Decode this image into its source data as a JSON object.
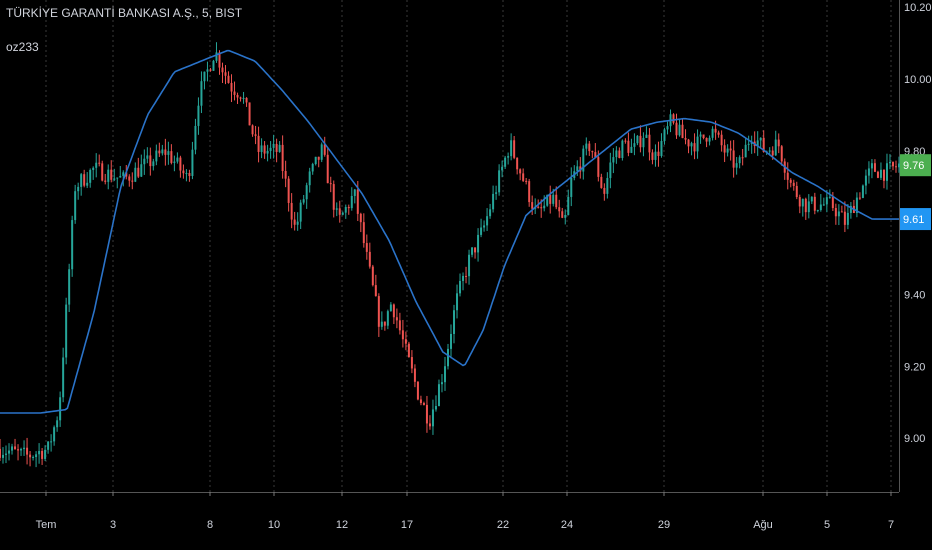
{
  "header": {
    "title": "TÜRKİYE GARANTİ BANKASI A.Ş., 5, BIST",
    "indicator": "oz233"
  },
  "colors": {
    "background": "#000000",
    "candle_up": "#26a69a",
    "candle_down": "#ef5350",
    "ma_line": "#2a73c9",
    "grid": "#3a3a3a",
    "axis_text": "#cfd3dc",
    "last_price_badge": "#4caf50",
    "ma_badge": "#2196f3"
  },
  "chart_data": {
    "type": "candlestick",
    "ylim": [
      8.85,
      10.22
    ],
    "y_ticks": [
      {
        "value": 10.2,
        "label": "10.20"
      },
      {
        "value": 10.0,
        "label": "10.00"
      },
      {
        "value": 9.8,
        "label": "9.80"
      },
      {
        "value": 9.4,
        "label": "9.40"
      },
      {
        "value": 9.2,
        "label": "9.20"
      },
      {
        "value": 9.0,
        "label": "9.00"
      }
    ],
    "x_ticks": [
      "Tem",
      "3",
      "8",
      "10",
      "12",
      "17",
      "22",
      "24",
      "29",
      "Ağu",
      "5",
      "7"
    ],
    "last_price": {
      "value": 9.76,
      "label": "9.76"
    },
    "ma_value": {
      "value": 9.61,
      "label": "9.61"
    },
    "price_path": [
      [
        0,
        8.97
      ],
      [
        1,
        8.95
      ],
      [
        1.8,
        8.97
      ],
      [
        2.2,
        9.08
      ],
      [
        2.8,
        9.7
      ],
      [
        3.5,
        9.75
      ],
      [
        4.6,
        9.72
      ],
      [
        5.4,
        9.76
      ],
      [
        6.2,
        9.8
      ],
      [
        7.0,
        9.72
      ],
      [
        7.4,
        9.95
      ],
      [
        8.0,
        10.08
      ],
      [
        8.6,
        9.98
      ],
      [
        9.0,
        9.96
      ],
      [
        9.6,
        9.8
      ],
      [
        10.4,
        9.8
      ],
      [
        11.0,
        9.58
      ],
      [
        11.5,
        9.72
      ],
      [
        12.0,
        9.8
      ],
      [
        12.6,
        9.6
      ],
      [
        13.2,
        9.68
      ],
      [
        13.8,
        9.45
      ],
      [
        14.2,
        9.3
      ],
      [
        14.6,
        9.38
      ],
      [
        15.2,
        9.22
      ],
      [
        15.6,
        9.12
      ],
      [
        16.0,
        9.05
      ],
      [
        16.5,
        9.18
      ],
      [
        17.0,
        9.38
      ],
      [
        17.5,
        9.5
      ],
      [
        18.0,
        9.58
      ],
      [
        18.5,
        9.7
      ],
      [
        19.0,
        9.82
      ],
      [
        19.5,
        9.72
      ],
      [
        20.0,
        9.62
      ],
      [
        20.6,
        9.67
      ],
      [
        21.0,
        9.58
      ],
      [
        21.3,
        9.72
      ],
      [
        22.0,
        9.82
      ],
      [
        22.5,
        9.68
      ],
      [
        22.8,
        9.78
      ],
      [
        23.3,
        9.82
      ],
      [
        23.6,
        9.8
      ],
      [
        24.0,
        9.85
      ],
      [
        24.4,
        9.78
      ],
      [
        25.0,
        9.88
      ],
      [
        25.5,
        9.83
      ],
      [
        26.0,
        9.82
      ],
      [
        26.5,
        9.86
      ],
      [
        27.0,
        9.8
      ],
      [
        27.5,
        9.75
      ],
      [
        28.0,
        9.85
      ],
      [
        28.5,
        9.8
      ],
      [
        29.0,
        9.82
      ],
      [
        29.5,
        9.7
      ],
      [
        30.0,
        9.65
      ],
      [
        30.5,
        9.65
      ],
      [
        31.0,
        9.65
      ],
      [
        31.5,
        9.6
      ],
      [
        32.0,
        9.68
      ],
      [
        32.5,
        9.75
      ],
      [
        33.0,
        9.74
      ],
      [
        33.5,
        9.76
      ]
    ],
    "ma_path": [
      [
        0,
        9.07
      ],
      [
        1.5,
        9.07
      ],
      [
        2.5,
        9.08
      ],
      [
        3.5,
        9.35
      ],
      [
        4.5,
        9.7
      ],
      [
        5.5,
        9.9
      ],
      [
        6.5,
        10.02
      ],
      [
        7.5,
        10.05
      ],
      [
        8.5,
        10.08
      ],
      [
        9.5,
        10.05
      ],
      [
        10.5,
        9.97
      ],
      [
        11.5,
        9.88
      ],
      [
        12.5,
        9.78
      ],
      [
        13.5,
        9.68
      ],
      [
        14.5,
        9.55
      ],
      [
        15.5,
        9.38
      ],
      [
        16.5,
        9.24
      ],
      [
        17.3,
        9.2
      ],
      [
        18.0,
        9.3
      ],
      [
        18.8,
        9.48
      ],
      [
        19.6,
        9.62
      ],
      [
        20.5,
        9.68
      ],
      [
        21.5,
        9.74
      ],
      [
        22.5,
        9.8
      ],
      [
        23.5,
        9.86
      ],
      [
        24.5,
        9.88
      ],
      [
        25.5,
        9.89
      ],
      [
        26.5,
        9.88
      ],
      [
        27.5,
        9.85
      ],
      [
        28.5,
        9.8
      ],
      [
        29.5,
        9.74
      ],
      [
        30.5,
        9.7
      ],
      [
        31.5,
        9.65
      ],
      [
        32.5,
        9.61
      ],
      [
        33.5,
        9.61
      ]
    ]
  }
}
